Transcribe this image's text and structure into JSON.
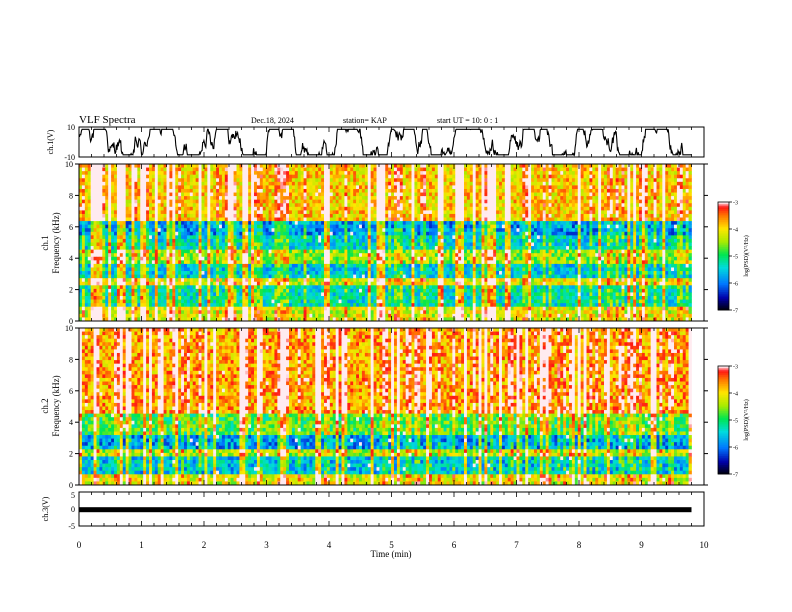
{
  "header": {
    "title": "VLF Spectra",
    "date": "Dec.18, 2024",
    "station": "station= KAP",
    "start_ut": "start  UT =   10: 0  : 1"
  },
  "chart_data": [
    {
      "type": "line",
      "name": "ch1-waveform",
      "ylabel": "ch.1(V)",
      "ylim": [
        -10,
        10
      ],
      "yticks": [
        "10",
        "-10"
      ],
      "xlim": [
        0,
        10
      ],
      "note": "dense oscillating voltage trace spanning roughly -8 to +8 V over 0-9.8 min"
    },
    {
      "type": "heatmap",
      "name": "ch1-spectrogram",
      "ylabel_1": "ch.1",
      "ylabel_2": "Frequency (kHz)",
      "ylim": [
        0,
        10
      ],
      "yticks": [
        "0",
        "2",
        "4",
        "6",
        "8",
        "10"
      ],
      "xlim": [
        0,
        9.8
      ],
      "colorbar": {
        "label": "log(PSD)(V²/Hz)",
        "range": [
          -7,
          -3
        ],
        "ticks": [
          "-3",
          "-4",
          "-5",
          "-6",
          "-7"
        ]
      },
      "bands": [
        {
          "from": 0,
          "to": 1.0,
          "level": -4.2
        },
        {
          "from": 1.0,
          "to": 2.2,
          "level": -5.3
        },
        {
          "from": 2.2,
          "to": 2.8,
          "level": -4.2
        },
        {
          "from": 2.8,
          "to": 3.6,
          "level": -5.5
        },
        {
          "from": 3.6,
          "to": 4.6,
          "level": -4.5
        },
        {
          "from": 4.6,
          "to": 5.4,
          "level": -5.4
        },
        {
          "from": 5.4,
          "to": 6.4,
          "level": -5.8
        },
        {
          "from": 6.4,
          "to": 10,
          "level": -3.9
        }
      ]
    },
    {
      "type": "heatmap",
      "name": "ch2-spectrogram",
      "ylabel_1": "ch.2",
      "ylabel_2": "Frequency (kHz)",
      "ylim": [
        0,
        10
      ],
      "yticks": [
        "0",
        "2",
        "4",
        "6",
        "8",
        "10"
      ],
      "xlim": [
        0,
        9.8
      ],
      "colorbar": {
        "label": "log(PSD)(V²/Hz)",
        "range": [
          -7,
          -3
        ],
        "ticks": [
          "-3",
          "-4",
          "-5",
          "-6",
          "-7"
        ]
      },
      "bands": [
        {
          "from": 0,
          "to": 0.6,
          "level": -4.2
        },
        {
          "from": 0.6,
          "to": 1.8,
          "level": -5.6
        },
        {
          "from": 1.8,
          "to": 2.3,
          "level": -4.4
        },
        {
          "from": 2.3,
          "to": 3.2,
          "level": -5.8
        },
        {
          "from": 3.2,
          "to": 4.6,
          "level": -4.8
        },
        {
          "from": 4.6,
          "to": 10,
          "level": -3.7
        }
      ]
    },
    {
      "type": "line",
      "name": "ch3-waveform",
      "ylabel": "ch.3(V)",
      "ylim": [
        -5,
        5
      ],
      "yticks": [
        "5",
        "0",
        "-5"
      ],
      "xlim": [
        0,
        10
      ],
      "level": -0.2,
      "note": "nearly constant thick trace near 0 V from 0 to 9.8 min"
    }
  ],
  "x_axis": {
    "label": "Time (min)",
    "range": [
      0,
      10
    ],
    "ticks": [
      "0",
      "1",
      "2",
      "3",
      "4",
      "5",
      "6",
      "7",
      "8",
      "9",
      "10"
    ]
  }
}
